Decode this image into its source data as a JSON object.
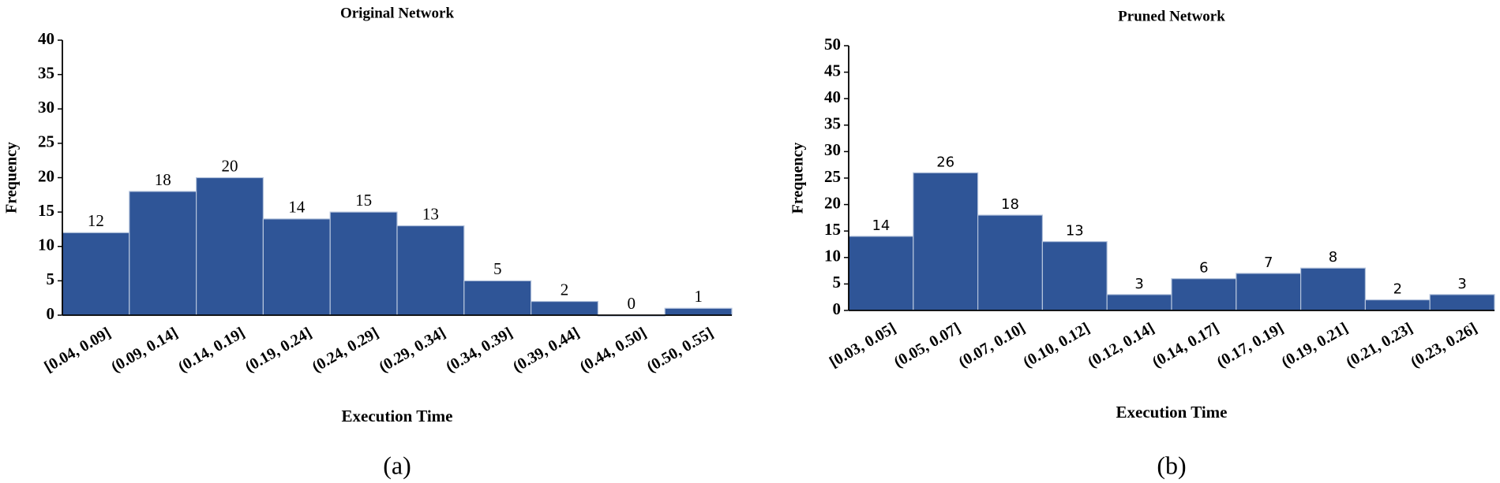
{
  "chart_data": [
    {
      "type": "bar",
      "title": "Original Network",
      "x_label": "Execution Time",
      "y_label": "Frequency",
      "caption": "(a)",
      "categories": [
        "[0.04, 0.09]",
        "(0.09, 0.14]",
        "(0.14, 0.19]",
        "(0.19, 0.24]",
        "(0.24, 0.29]",
        "(0.29, 0.34]",
        "(0.34, 0.39]",
        "(0.39, 0.44]",
        "(0.44, 0.50]",
        "(0.50, 0.55]"
      ],
      "values": [
        12,
        18,
        20,
        14,
        15,
        13,
        5,
        2,
        0,
        1
      ],
      "color": "#2f5597",
      "ylim": [
        0,
        40
      ],
      "yticks": [
        0,
        5,
        10,
        15,
        20,
        25,
        30,
        35,
        40
      ]
    },
    {
      "type": "bar",
      "title": "Pruned Network",
      "x_label": "Execution Time",
      "y_label": "Frequency",
      "caption": "(b)",
      "categories": [
        "[0.03, 0.05]",
        "(0.05, 0.07]",
        "(0.07, 0.10]",
        "(0.10, 0.12]",
        "(0.12, 0.14]",
        "(0.14, 0.17]",
        "(0.17, 0.19]",
        "(0.19, 0.21]",
        "(0.21, 0.23]",
        "(0.23, 0.26]"
      ],
      "values": [
        14,
        26,
        18,
        13,
        3,
        6,
        7,
        8,
        2,
        3
      ],
      "color": "#2f5597",
      "ylim": [
        0,
        50
      ],
      "yticks": [
        0,
        5,
        10,
        15,
        20,
        25,
        30,
        35,
        40,
        45,
        50
      ]
    }
  ]
}
